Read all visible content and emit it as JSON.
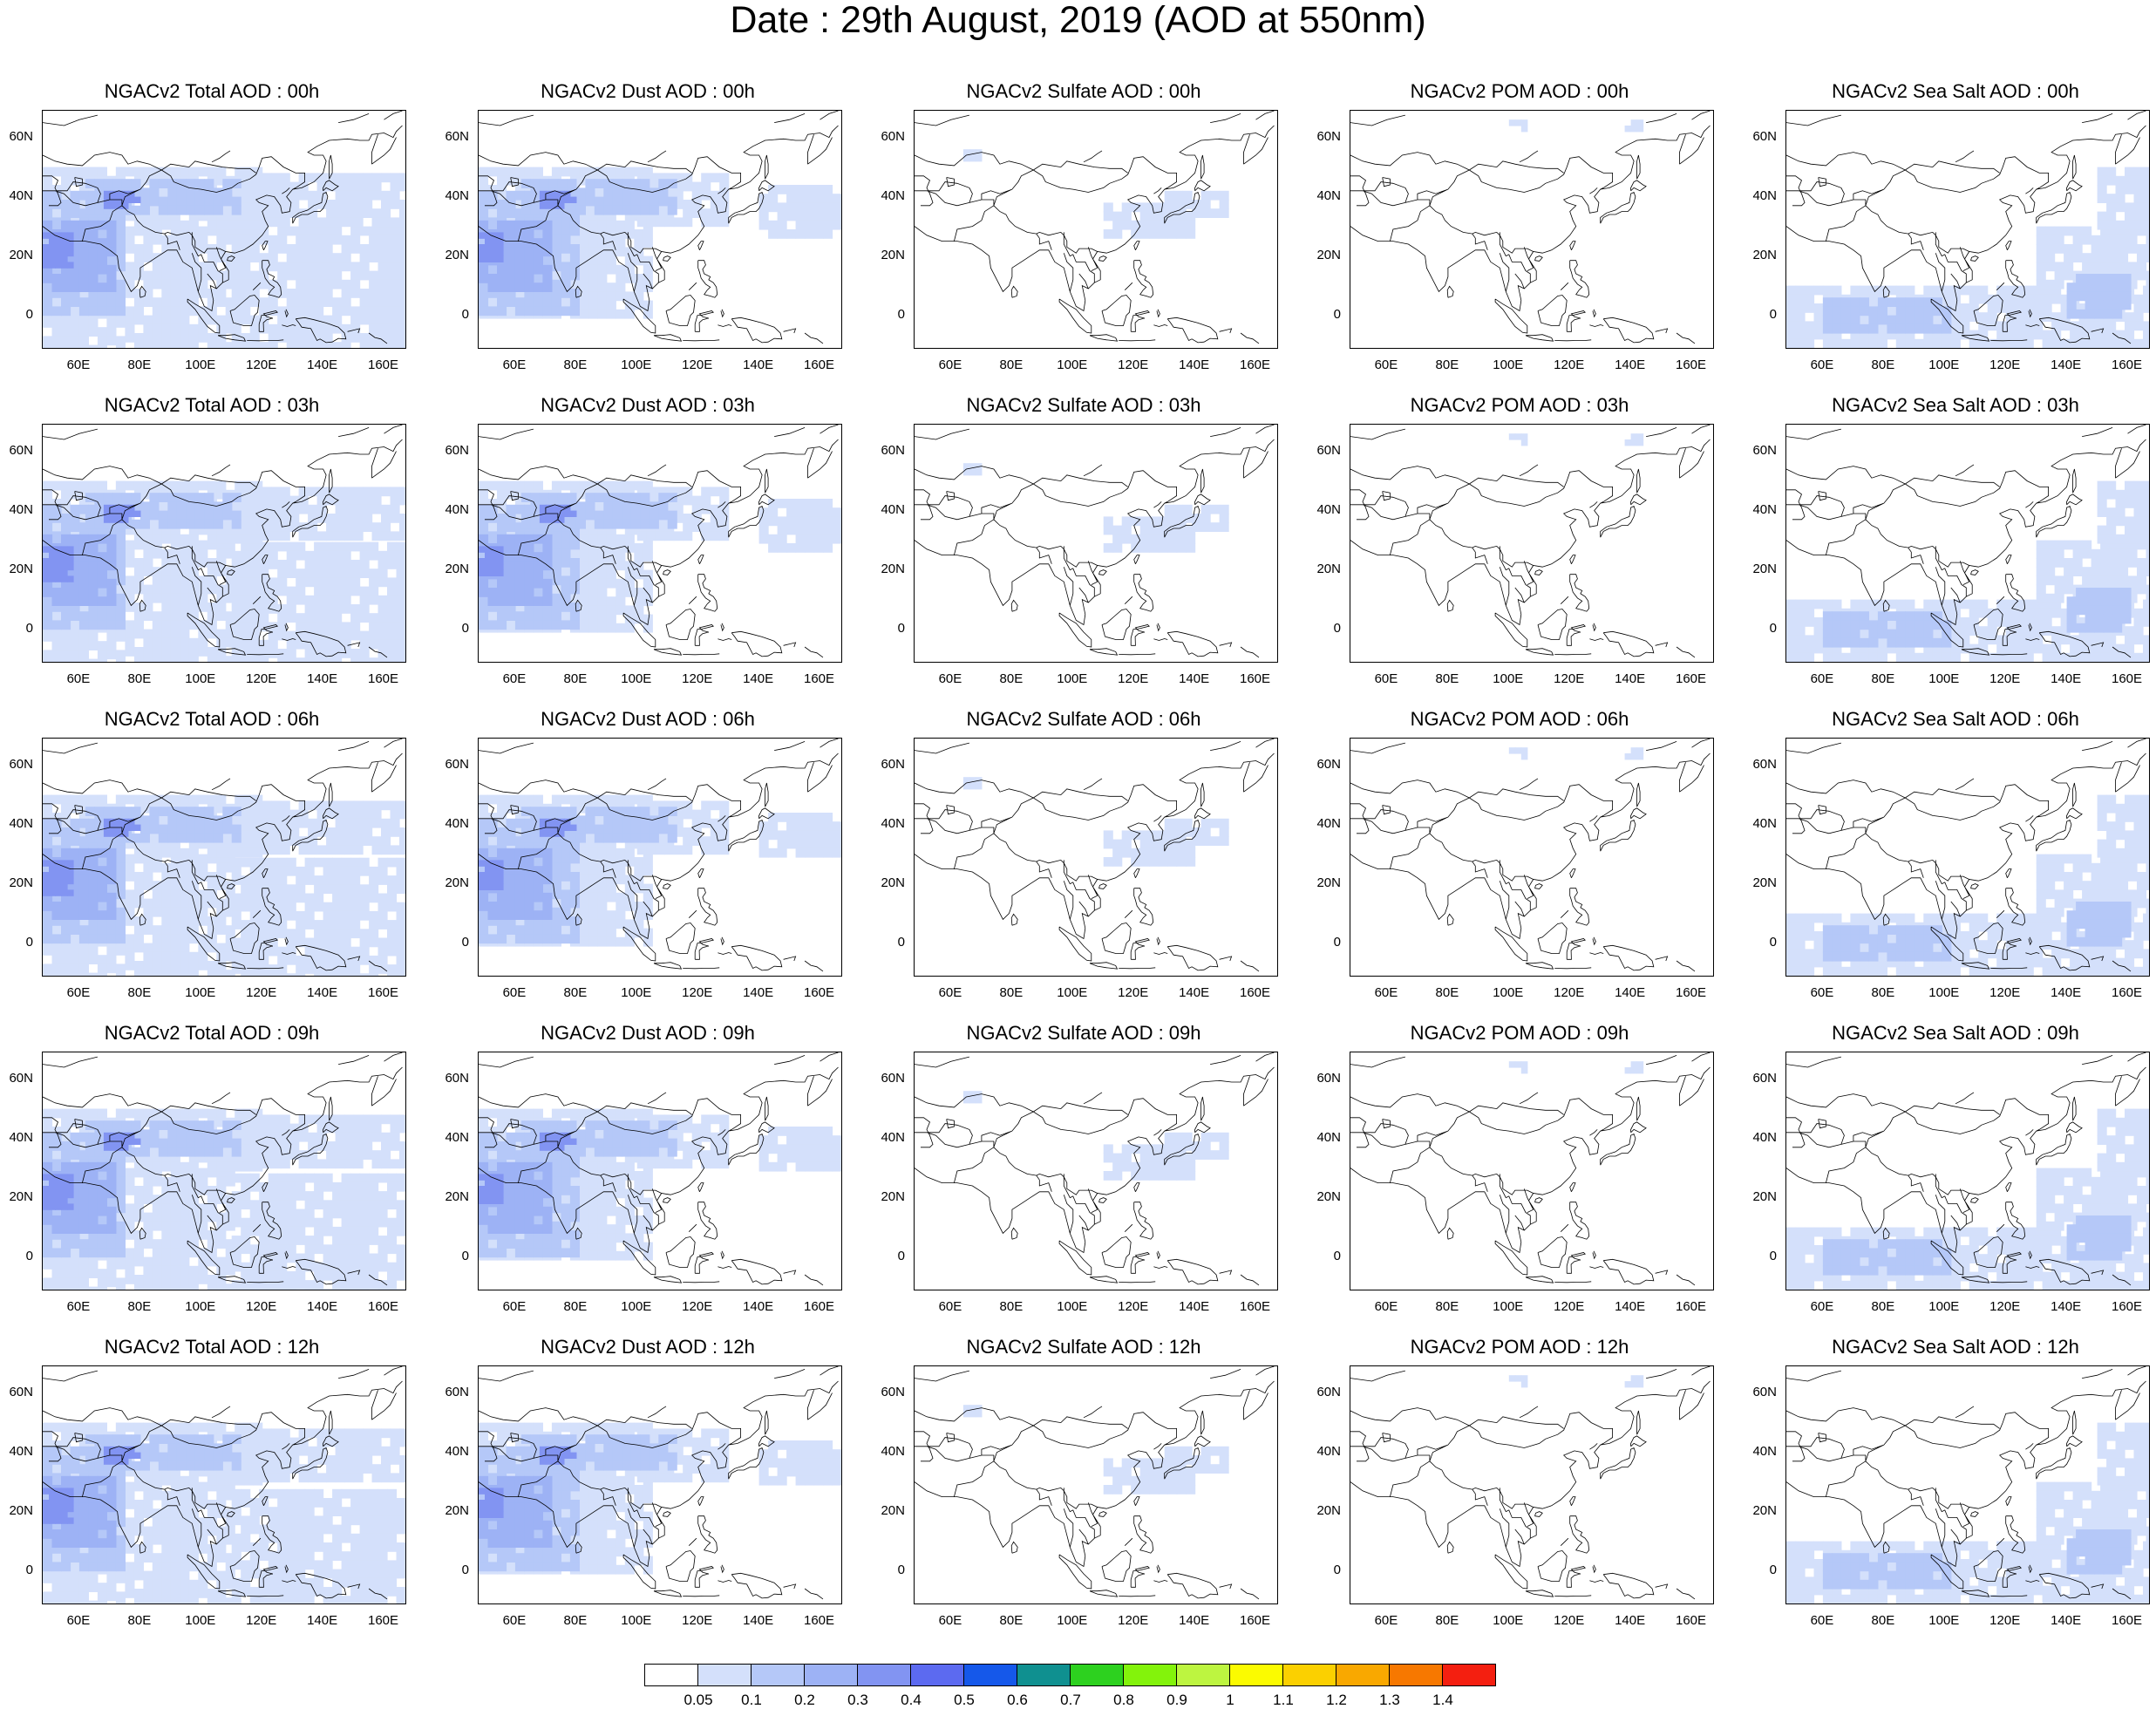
{
  "title": "Date : 29th August, 2019 (AOD at 550nm)",
  "panels": [
    [
      "NGACv2 Total AOD : 00h",
      "NGACv2 Dust AOD : 00h",
      "NGACv2 Sulfate AOD : 00h",
      "NGACv2 POM AOD : 00h",
      "NGACv2 Sea Salt AOD : 00h"
    ],
    [
      "NGACv2 Total AOD : 03h",
      "NGACv2 Dust AOD : 03h",
      "NGACv2 Sulfate AOD : 03h",
      "NGACv2 POM AOD : 03h",
      "NGACv2 Sea Salt AOD : 03h"
    ],
    [
      "NGACv2 Total AOD : 06h",
      "NGACv2 Dust AOD : 06h",
      "NGACv2 Sulfate AOD : 06h",
      "NGACv2 POM AOD : 06h",
      "NGACv2 Sea Salt AOD : 06h"
    ],
    [
      "NGACv2 Total AOD : 09h",
      "NGACv2 Dust AOD : 09h",
      "NGACv2 Sulfate AOD : 09h",
      "NGACv2 POM AOD : 09h",
      "NGACv2 Sea Salt  AOD : 09h"
    ],
    [
      "NGACv2 Total AOD  : 12h",
      "NGACv2 Dust AOD : 12h",
      "NGACv2 Sulfate AOD : 12h",
      "NGACv2 POM  AOD : 12h",
      "NGACv2 Sea Salt  AOD : 12h"
    ]
  ],
  "lat_labels": [
    "60N",
    "40N",
    "20N",
    "0"
  ],
  "lon_labels": [
    "60E",
    "80E",
    "100E",
    "120E",
    "140E",
    "160E"
  ],
  "colorbar": {
    "colors": [
      "#ffffff",
      "#d4e0fb",
      "#b5c8f8",
      "#9db2f5",
      "#8294f2",
      "#5c6af0",
      "#1558ea",
      "#0f9090",
      "#2dd11f",
      "#83f30b",
      "#bdf540",
      "#fbfb00",
      "#fbd000",
      "#f9a800",
      "#f77800",
      "#f41f10"
    ],
    "labels": [
      "0.05",
      "0.1",
      "0.2",
      "0.3",
      "0.4",
      "0.5",
      "0.6",
      "0.7",
      "0.8",
      "0.9",
      "1",
      "1.1",
      "1.2",
      "1.3",
      "1.4"
    ]
  }
}
